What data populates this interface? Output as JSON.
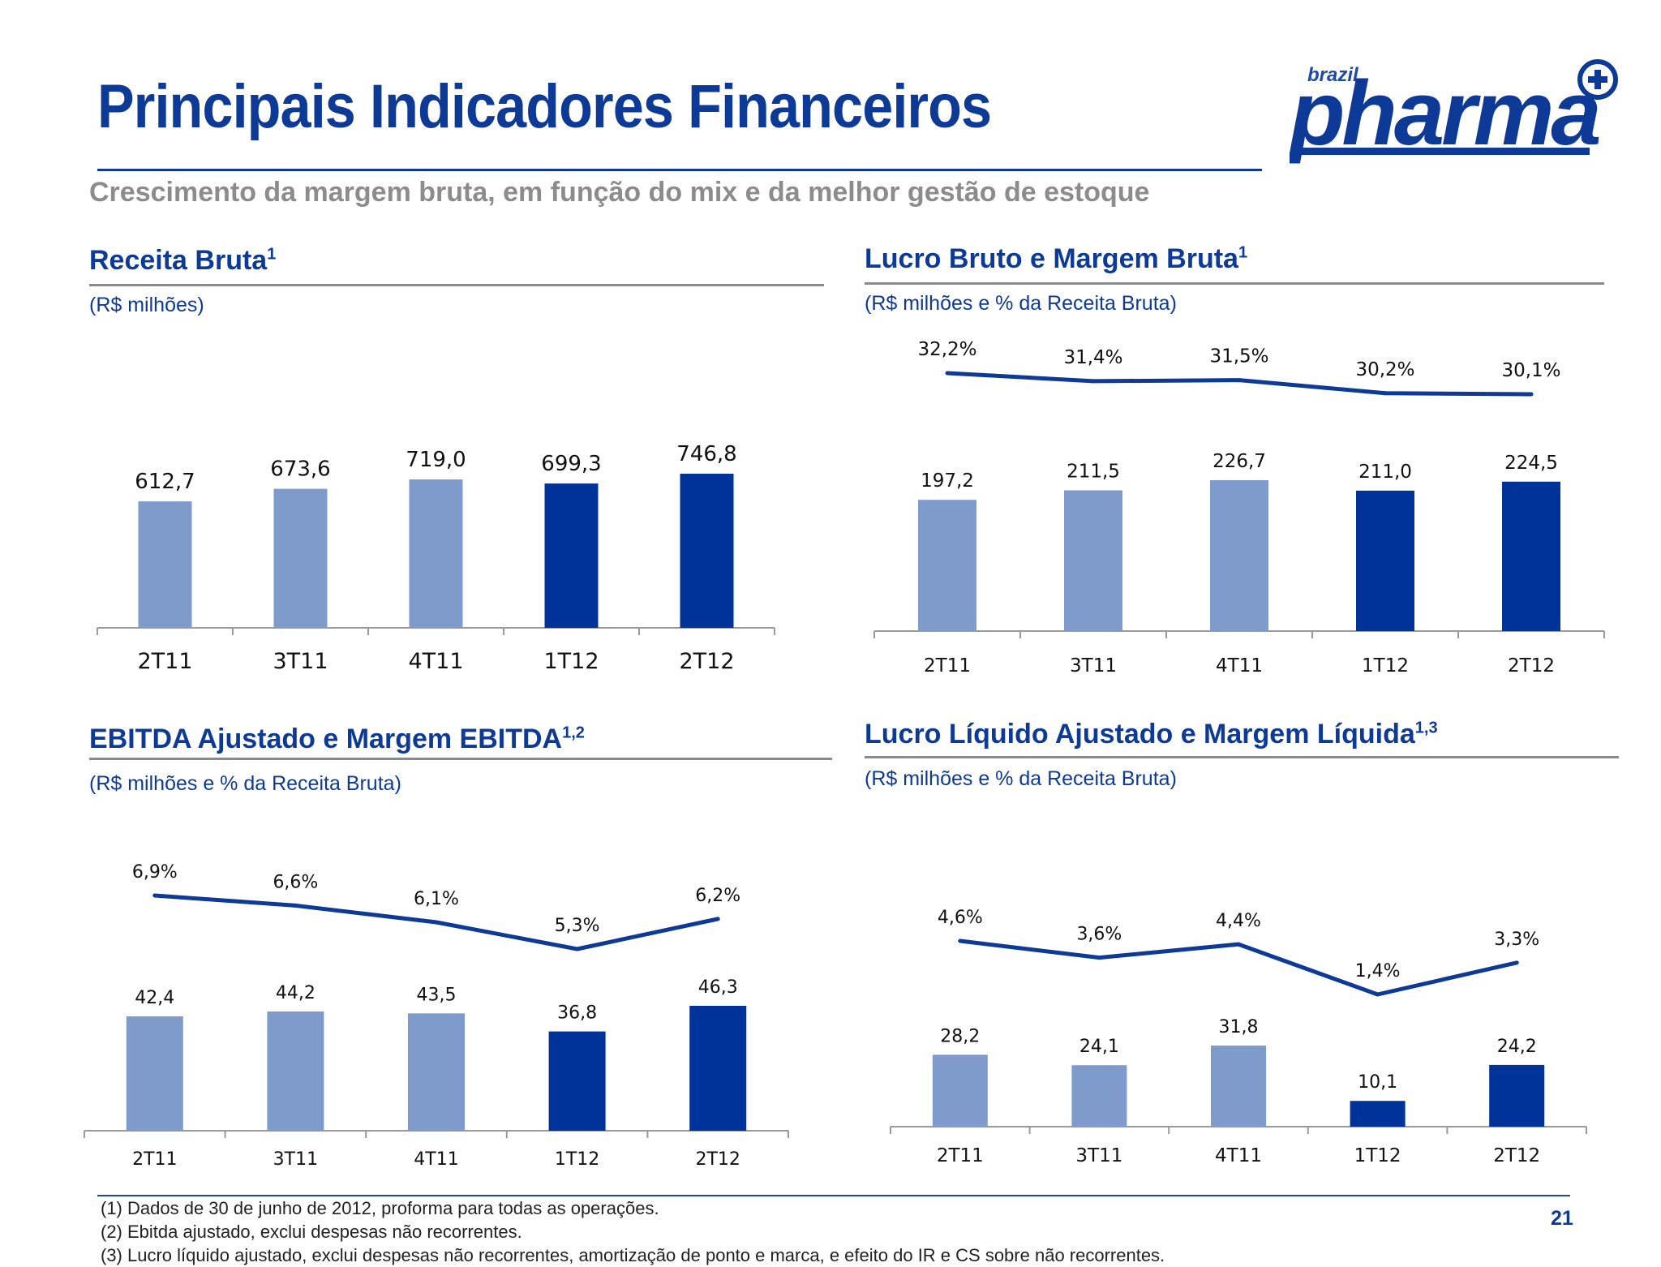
{
  "header": {
    "title": "Principais Indicadores Financeiros",
    "subtitle": "Crescimento da margem bruta, em função do mix e da melhor gestão de estoque",
    "logo_small": "brazil",
    "logo_main": "pharma"
  },
  "colors": {
    "light_bar": "#7f9bcb",
    "dark_bar": "#003399",
    "line": "#0e3a97",
    "brand": "#0e3a97"
  },
  "panels": [
    {
      "title": "Receita Bruta",
      "sup": "1",
      "unit": "(R$ milhões)"
    },
    {
      "title": "Lucro Bruto e Margem Bruta",
      "sup": "1",
      "unit": "(R$ milhões e % da Receita Bruta)"
    },
    {
      "title": "EBITDA Ajustado e Margem EBITDA",
      "sup": "1,2",
      "unit": "(R$ milhões e % da Receita Bruta)"
    },
    {
      "title": "Lucro Líquido Ajustado e Margem Líquida",
      "sup": "1,3",
      "unit": "(R$ milhões e % da Receita Bruta)"
    }
  ],
  "chart_data": [
    {
      "type": "bar",
      "categories": [
        "2T11",
        "3T11",
        "4T11",
        "1T12",
        "2T12"
      ],
      "values": [
        612.7,
        673.6,
        719.0,
        699.3,
        746.8
      ],
      "value_labels": [
        "612,7",
        "673,6",
        "719,0",
        "699,3",
        "746,8"
      ],
      "bar_shades": [
        "light",
        "light",
        "light",
        "dark",
        "dark"
      ]
    },
    {
      "type": "bar",
      "categories": [
        "2T11",
        "3T11",
        "4T11",
        "1T12",
        "2T12"
      ],
      "values": [
        197.2,
        211.5,
        226.7,
        211.0,
        224.5
      ],
      "value_labels": [
        "197,2",
        "211,5",
        "226,7",
        "211,0",
        "224,5"
      ],
      "bar_shades": [
        "light",
        "light",
        "light",
        "dark",
        "dark"
      ],
      "line_values": [
        32.2,
        31.4,
        31.5,
        30.2,
        30.1
      ],
      "line_labels": [
        "32,2%",
        "31,4%",
        "31,5%",
        "30,2%",
        "30,1%"
      ]
    },
    {
      "type": "bar",
      "categories": [
        "2T11",
        "3T11",
        "4T11",
        "1T12",
        "2T12"
      ],
      "values": [
        42.4,
        44.2,
        43.5,
        36.8,
        46.3
      ],
      "value_labels": [
        "42,4",
        "44,2",
        "43,5",
        "36,8",
        "46,3"
      ],
      "bar_shades": [
        "light",
        "light",
        "light",
        "dark",
        "dark"
      ],
      "line_values": [
        6.9,
        6.6,
        6.1,
        5.3,
        6.2
      ],
      "line_labels": [
        "6,9%",
        "6,6%",
        "6,1%",
        "5,3%",
        "6,2%"
      ]
    },
    {
      "type": "bar",
      "categories": [
        "2T11",
        "3T11",
        "4T11",
        "1T12",
        "2T12"
      ],
      "values": [
        28.2,
        24.1,
        31.8,
        10.1,
        24.2
      ],
      "value_labels": [
        "28,2",
        "24,1",
        "31,8",
        "10,1",
        "24,2"
      ],
      "bar_shades": [
        "light",
        "light",
        "light",
        "dark",
        "dark"
      ],
      "line_values": [
        4.6,
        3.6,
        4.4,
        1.4,
        3.3
      ],
      "line_labels": [
        "4,6%",
        "3,6%",
        "4,4%",
        "1,4%",
        "3,3%"
      ]
    }
  ],
  "footnotes": [
    "(1)   Dados de 30 de junho de 2012, proforma para todas as operações.",
    "(2)   Ebitda ajustado, exclui despesas não recorrentes.",
    "(3)   Lucro líquido ajustado, exclui despesas não recorrentes, amortização de ponto e marca, e efeito do IR e CS sobre não recorrentes."
  ],
  "page_number": "21"
}
